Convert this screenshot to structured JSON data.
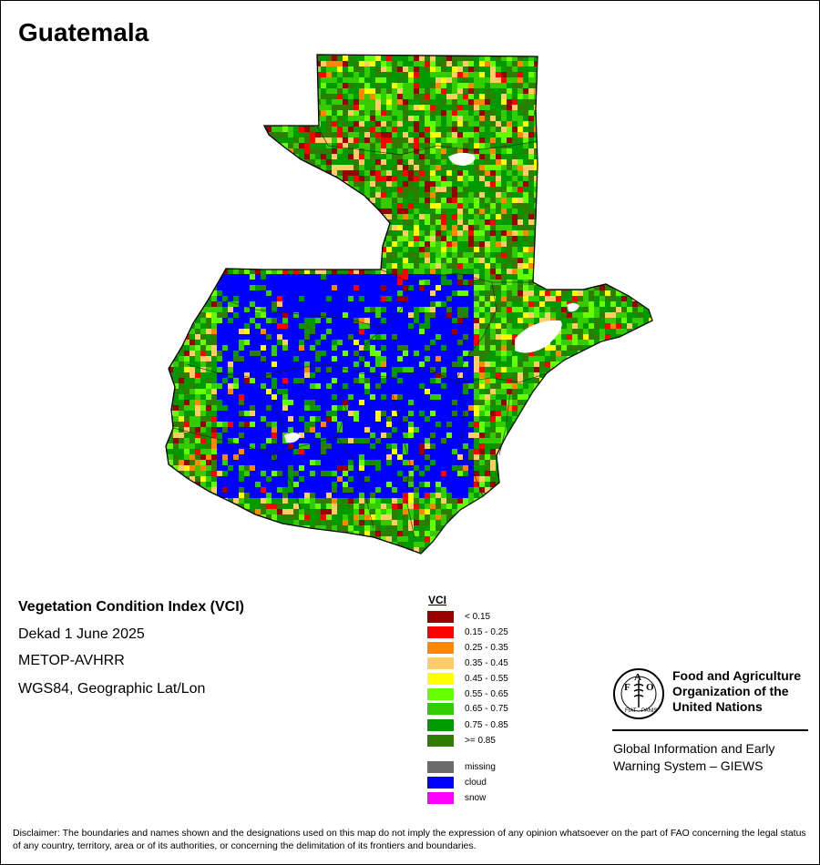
{
  "map_title": "Guatemala",
  "info": {
    "title": "Vegetation Condition Index (VCI)",
    "period": "Dekad 1 June 2025",
    "sensor": "METOP-AVHRR",
    "projection": "WGS84, Geographic Lat/Lon"
  },
  "legend": {
    "title": "VCI",
    "classes": [
      {
        "label": "< 0.15",
        "color": "#990000"
      },
      {
        "label": "0.15 - 0.25",
        "color": "#ff0000"
      },
      {
        "label": "0.25 - 0.35",
        "color": "#ff8800"
      },
      {
        "label": "0.35 - 0.45",
        "color": "#ffcc66"
      },
      {
        "label": "0.45 - 0.55",
        "color": "#ffff00"
      },
      {
        "label": "0.55 - 0.65",
        "color": "#66ff00"
      },
      {
        "label": "0.65 - 0.75",
        "color": "#33cc00"
      },
      {
        "label": "0.75 - 0.85",
        "color": "#009900"
      },
      {
        "label": ">= 0.85",
        "color": "#2e7d00"
      }
    ],
    "special": [
      {
        "label": "missing",
        "color": "#6b6b6b"
      },
      {
        "label": "cloud",
        "color": "#0000ff"
      },
      {
        "label": "snow",
        "color": "#ff00ff"
      }
    ]
  },
  "logo": {
    "letters": "FAO",
    "motto": "FIAT PANIS",
    "org_line1": "Food and Agriculture",
    "org_line2": "Organization of the",
    "org_line3": "United Nations"
  },
  "giews": {
    "line1": "Global Information and Early",
    "line2": "Warning System – GIEWS"
  },
  "disclaimer": "Disclaimer: The boundaries and names shown and the designations used on this map do not imply the expression of any opinion whatsoever on the part of FAO concerning the legal status of any country, territory, area or of its authorities, or concerning the delimitation of its frontiers and boundaries."
}
